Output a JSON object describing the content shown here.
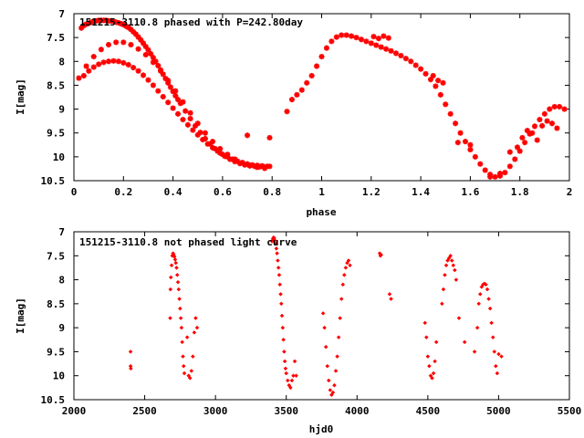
{
  "colors": {
    "points": "#ff0000",
    "axes": "#000000",
    "background": "#ffffff"
  },
  "chart_data": [
    {
      "type": "scatter",
      "title": "151215-3110.8 phased with P=242.80day",
      "xlabel": "phase",
      "ylabel": "I[mag]",
      "xlim": [
        0,
        2
      ],
      "ylim": [
        10.5,
        7
      ],
      "y_inverted": true,
      "grid": false,
      "marker": "star",
      "xticks": [
        "0",
        "0.2",
        "0.4",
        "0.6",
        "0.8",
        "1",
        "1.2",
        "1.4",
        "1.6",
        "1.8",
        "2"
      ],
      "yticks": [
        "7",
        "7.5",
        "8",
        "8.5",
        "9",
        "9.5",
        "10",
        "10.5"
      ],
      "xtick_values": [
        0,
        0.2,
        0.4,
        0.6,
        0.8,
        1,
        1.2,
        1.4,
        1.6,
        1.8,
        2
      ],
      "ytick_values": [
        7,
        7.5,
        8,
        8.5,
        9,
        9.5,
        10,
        10.5
      ],
      "x": [
        0.03,
        0.04,
        0.05,
        0.06,
        0.07,
        0.08,
        0.09,
        0.1,
        0.11,
        0.12,
        0.13,
        0.14,
        0.15,
        0.16,
        0.17,
        0.18,
        0.19,
        0.2,
        0.21,
        0.22,
        0.23,
        0.24,
        0.25,
        0.26,
        0.27,
        0.28,
        0.29,
        0.3,
        0.31,
        0.32,
        0.33,
        0.34,
        0.35,
        0.36,
        0.37,
        0.38,
        0.39,
        0.4,
        0.41,
        0.42,
        0.43,
        0.45,
        0.47,
        0.49,
        0.51,
        0.53,
        0.55,
        0.57,
        0.59,
        0.61,
        0.63,
        0.65,
        0.67,
        0.69,
        0.71,
        0.73,
        0.75,
        0.77,
        0.79,
        0.04,
        0.06,
        0.08,
        0.1,
        0.12,
        0.14,
        0.16,
        0.18,
        0.2,
        0.22,
        0.24,
        0.26,
        0.28,
        0.3,
        0.32,
        0.34,
        0.36,
        0.38,
        0.4,
        0.42,
        0.44,
        0.46,
        0.48,
        0.5,
        0.52,
        0.54,
        0.56,
        0.58,
        0.6,
        0.62,
        0.64,
        0.66,
        0.68,
        0.7,
        0.72,
        0.74,
        0.76,
        0.78,
        0.02,
        0.05,
        0.08,
        0.11,
        0.14,
        0.17,
        0.2,
        0.23,
        0.26,
        0.29,
        0.32,
        0.35,
        0.38,
        0.41,
        0.44,
        0.47,
        0.5,
        0.53,
        0.56,
        0.59,
        0.62,
        0.65,
        0.68,
        0.71,
        0.74,
        0.77,
        0.7,
        0.79,
        0.86,
        0.88,
        0.9,
        0.92,
        0.94,
        0.96,
        0.98,
        1.0,
        1.02,
        1.04,
        1.06,
        1.08,
        1.1,
        1.12,
        1.14,
        1.16,
        1.18,
        1.2,
        1.22,
        1.24,
        1.26,
        1.28,
        1.3,
        1.32,
        1.34,
        1.36,
        1.38,
        1.4,
        1.42,
        1.44,
        1.46,
        1.48,
        1.5,
        1.52,
        1.54,
        1.56,
        1.58,
        1.6,
        1.62,
        1.64,
        1.66,
        1.68,
        1.7,
        1.72,
        1.74,
        1.76,
        1.78,
        1.8,
        1.82,
        1.84,
        1.86,
        1.88,
        1.9,
        1.92,
        1.94,
        1.96,
        1.98,
        1.21,
        1.23,
        1.25,
        1.27,
        1.45,
        1.47,
        1.49,
        1.55,
        1.6,
        1.68,
        1.72,
        1.76,
        1.79,
        1.81,
        1.83,
        1.85,
        1.87,
        1.89,
        1.91,
        1.93,
        1.95
      ],
      "y": [
        7.3,
        7.25,
        7.22,
        7.2,
        7.18,
        7.16,
        7.15,
        7.14,
        7.14,
        7.14,
        7.14,
        7.15,
        7.15,
        7.16,
        7.18,
        7.19,
        7.21,
        7.23,
        7.26,
        7.29,
        7.33,
        7.38,
        7.43,
        7.49,
        7.55,
        7.62,
        7.69,
        7.76,
        7.84,
        7.92,
        8.0,
        8.09,
        8.18,
        8.27,
        8.36,
        8.45,
        8.54,
        8.63,
        8.72,
        8.8,
        8.88,
        9.04,
        9.2,
        9.35,
        9.49,
        9.62,
        9.73,
        9.83,
        9.92,
        9.99,
        10.05,
        10.1,
        10.14,
        10.17,
        10.19,
        10.2,
        10.21,
        10.22,
        10.2,
        8.3,
        8.2,
        8.12,
        8.06,
        8.02,
        8.0,
        7.99,
        8.0,
        8.03,
        8.07,
        8.13,
        8.2,
        8.29,
        8.39,
        8.5,
        8.62,
        8.74,
        8.86,
        8.98,
        9.1,
        9.22,
        9.33,
        9.44,
        9.54,
        9.64,
        9.73,
        9.81,
        9.88,
        9.95,
        10.0,
        10.05,
        10.09,
        10.12,
        10.15,
        10.17,
        10.18,
        10.19,
        10.2,
        8.35,
        8.1,
        7.9,
        7.75,
        7.65,
        7.6,
        7.6,
        7.65,
        7.74,
        7.86,
        8.02,
        8.2,
        8.4,
        8.62,
        8.85,
        9.08,
        9.3,
        9.5,
        9.68,
        9.83,
        9.95,
        10.05,
        10.13,
        10.18,
        10.22,
        10.24,
        9.55,
        9.6,
        9.05,
        8.8,
        8.7,
        8.6,
        8.45,
        8.3,
        8.1,
        7.9,
        7.72,
        7.58,
        7.49,
        7.45,
        7.45,
        7.47,
        7.5,
        7.54,
        7.58,
        7.62,
        7.66,
        7.7,
        7.74,
        7.78,
        7.83,
        7.88,
        7.94,
        8.0,
        8.08,
        8.16,
        8.26,
        8.38,
        8.52,
        8.7,
        8.9,
        9.1,
        9.3,
        9.5,
        9.68,
        9.85,
        10.0,
        10.15,
        10.28,
        10.37,
        10.42,
        10.4,
        10.33,
        10.2,
        10.05,
        9.88,
        9.7,
        9.52,
        9.36,
        9.22,
        9.1,
        9.0,
        8.95,
        8.95,
        9.0,
        7.48,
        7.52,
        7.47,
        7.51,
        8.3,
        8.4,
        8.45,
        9.7,
        9.75,
        10.42,
        10.35,
        9.9,
        9.8,
        9.6,
        9.45,
        9.5,
        9.65,
        9.35,
        9.25,
        9.3,
        9.4
      ]
    },
    {
      "type": "scatter",
      "title": "151215-3110.8 not phased light curve",
      "xlabel": "hjd0",
      "ylabel": "I[mag]",
      "xlim": [
        2000,
        5500
      ],
      "ylim": [
        10.5,
        7
      ],
      "y_inverted": true,
      "grid": false,
      "marker": "diamond",
      "xticks": [
        "2000",
        "2500",
        "3000",
        "3500",
        "4000",
        "4500",
        "5000",
        "5500"
      ],
      "yticks": [
        "7",
        "7.5",
        "8",
        "8.5",
        "9",
        "9.5",
        "10",
        "10.5"
      ],
      "xtick_values": [
        2000,
        2500,
        3000,
        3500,
        4000,
        4500,
        5000,
        5500
      ],
      "ytick_values": [
        7,
        7.5,
        8,
        8.5,
        9,
        9.5,
        10,
        10.5
      ],
      "x": [
        2400,
        2400,
        2402,
        2680,
        2682,
        2685,
        2690,
        2695,
        2700,
        2705,
        2710,
        2715,
        2720,
        2725,
        2730,
        2735,
        2740,
        2745,
        2750,
        2755,
        2760,
        2765,
        2770,
        2775,
        2780,
        2800,
        2810,
        2820,
        2830,
        2840,
        2850,
        2860,
        2870,
        3400,
        3405,
        3410,
        3415,
        3420,
        3425,
        3430,
        3435,
        3440,
        3445,
        3450,
        3455,
        3460,
        3465,
        3470,
        3475,
        3480,
        3485,
        3490,
        3495,
        3500,
        3510,
        3520,
        3530,
        3540,
        3550,
        3560,
        3570,
        3760,
        3770,
        3780,
        3790,
        3800,
        3810,
        3820,
        3830,
        3840,
        3850,
        3860,
        3870,
        3880,
        3890,
        3900,
        3910,
        3920,
        3930,
        3940,
        3950,
        4160,
        4165,
        4170,
        4230,
        4240,
        4480,
        4490,
        4500,
        4510,
        4520,
        4530,
        4540,
        4550,
        4560,
        4600,
        4610,
        4620,
        4630,
        4640,
        4650,
        4660,
        4670,
        4680,
        4690,
        4700,
        4720,
        4760,
        4830,
        4850,
        4860,
        4870,
        4880,
        4890,
        4900,
        4910,
        4920,
        4930,
        4940,
        4950,
        4960,
        4970,
        4980,
        4990,
        5000,
        5020
      ],
      "y": [
        9.5,
        9.8,
        9.85,
        8.8,
        8.2,
        7.95,
        7.7,
        7.5,
        7.45,
        7.48,
        7.52,
        7.58,
        7.65,
        7.75,
        7.9,
        8.05,
        8.2,
        8.4,
        8.6,
        8.8,
        9.0,
        9.3,
        9.6,
        9.8,
        9.95,
        9.2,
        10.0,
        10.05,
        9.9,
        9.6,
        9.1,
        8.8,
        9.0,
        7.2,
        7.15,
        7.12,
        7.13,
        7.18,
        7.25,
        7.35,
        7.45,
        7.6,
        7.75,
        7.9,
        8.1,
        8.3,
        8.5,
        8.75,
        9.0,
        9.25,
        9.5,
        9.7,
        9.85,
        9.95,
        10.1,
        10.2,
        10.25,
        10.1,
        10.0,
        9.7,
        10.0,
        8.7,
        9.0,
        9.4,
        9.8,
        10.1,
        10.3,
        10.4,
        10.35,
        10.2,
        9.9,
        9.6,
        9.2,
        8.8,
        8.4,
        8.1,
        7.9,
        7.75,
        7.65,
        7.6,
        7.7,
        7.45,
        7.5,
        7.48,
        8.3,
        8.4,
        8.9,
        9.2,
        9.6,
        9.8,
        10.0,
        10.05,
        9.95,
        9.7,
        9.3,
        8.5,
        8.2,
        7.9,
        7.7,
        7.6,
        7.55,
        7.5,
        7.6,
        7.7,
        7.8,
        8.0,
        8.8,
        9.3,
        9.5,
        9.0,
        8.5,
        8.3,
        8.15,
        8.1,
        8.08,
        8.1,
        8.2,
        8.4,
        8.6,
        8.9,
        9.2,
        9.5,
        9.8,
        9.95,
        9.55,
        9.6
      ]
    }
  ]
}
